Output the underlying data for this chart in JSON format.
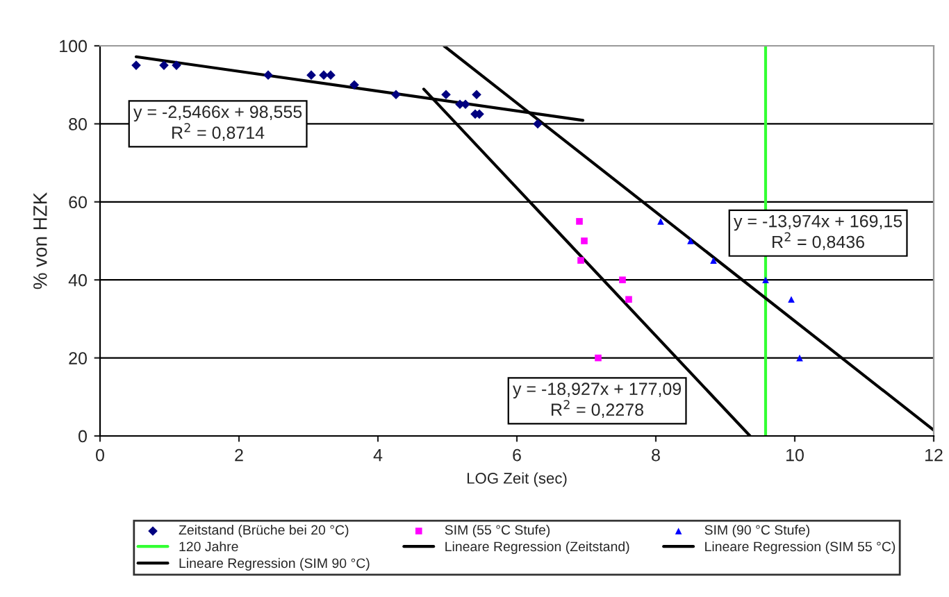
{
  "chart_data": {
    "type": "scatter",
    "xlabel": "LOG Zeit (sec)",
    "ylabel": "% von HZK",
    "xlim": [
      0,
      12
    ],
    "xticks": [
      0,
      2,
      4,
      6,
      8,
      10,
      12
    ],
    "ylim": [
      0,
      100
    ],
    "yticks": [
      0,
      20,
      40,
      60,
      80,
      100
    ],
    "grid": "y",
    "legend": "bottom",
    "series": [
      {
        "name": "Zeitstand (Brüche bei 20 °C)",
        "marker": "diamond",
        "color": "#000080",
        "x": [
          0.52,
          0.92,
          1.1,
          2.42,
          3.04,
          3.22,
          3.32,
          3.66,
          4.26,
          4.98,
          5.18,
          5.26,
          5.42,
          5.4,
          5.46,
          6.3
        ],
        "values": [
          95,
          95,
          95,
          92.5,
          92.5,
          92.5,
          92.5,
          90,
          87.5,
          87.5,
          85,
          85,
          87.5,
          82.5,
          82.5,
          80
        ]
      },
      {
        "name": "SIM (55 °C Stufe)",
        "marker": "square",
        "color": "#ff00ff",
        "x": [
          6.9,
          6.97,
          6.92,
          7.52,
          7.61,
          7.17
        ],
        "values": [
          55,
          50,
          45,
          40,
          35,
          20
        ]
      },
      {
        "name": "SIM (90 °C Stufe)",
        "marker": "triangle",
        "color": "#0000ff",
        "x": [
          8.07,
          8.5,
          8.83,
          9.58,
          9.95,
          10.07
        ],
        "values": [
          55,
          50,
          45,
          40,
          35,
          20
        ]
      },
      {
        "name": "120 Jahre",
        "type": "line",
        "marker": "none",
        "color": "#33ff33",
        "x": [
          9.58,
          9.58
        ],
        "values": [
          0,
          100
        ]
      },
      {
        "name": "Lineare Regression (Zeitstand)",
        "type": "line",
        "marker": "none",
        "color": "#000000",
        "x": [
          0.52,
          6.95
        ],
        "values": [
          97.2,
          80.9
        ]
      },
      {
        "name": "Lineare Regression (SIM 55 °C)",
        "type": "line",
        "marker": "none",
        "color": "#000000",
        "x": [
          4.66,
          9.356
        ],
        "values": [
          88.9,
          0
        ]
      },
      {
        "name": "Lineare Regression (SIM 90 °C)",
        "type": "line",
        "marker": "none",
        "color": "#000000",
        "x": [
          4.95,
          12
        ],
        "values": [
          100,
          1.5
        ]
      }
    ],
    "annotations": [
      "y = -2,5466x + 98,555\nR$^{2}$ = 0,8714",
      "y = -18,927x + 177,09\nR$^{2}$ = 0,2278",
      "y = -13,974x + 169,15\nR$^{2}$ = 0,8436"
    ]
  }
}
